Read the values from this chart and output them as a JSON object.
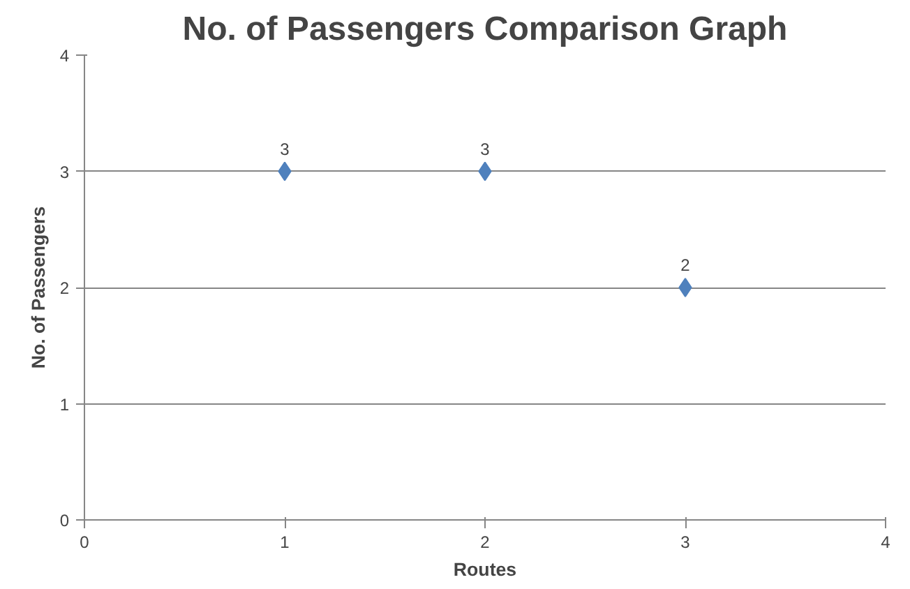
{
  "chart_data": {
    "type": "scatter",
    "title": "No. of Passengers Comparison Graph",
    "xlabel": "Routes",
    "ylabel": "No. of Passengers",
    "x": [
      1,
      2,
      3
    ],
    "series": [
      {
        "color": "#4f81bd",
        "values": [
          3,
          3,
          2
        ]
      }
    ],
    "xlim": [
      0,
      4
    ],
    "xticks": [
      0,
      1,
      2,
      3,
      4
    ],
    "ylim": [
      0,
      4
    ],
    "yticks": [
      0,
      1,
      2,
      3,
      4
    ],
    "grid": "y",
    "marker": "diamond",
    "data_labels": true
  }
}
